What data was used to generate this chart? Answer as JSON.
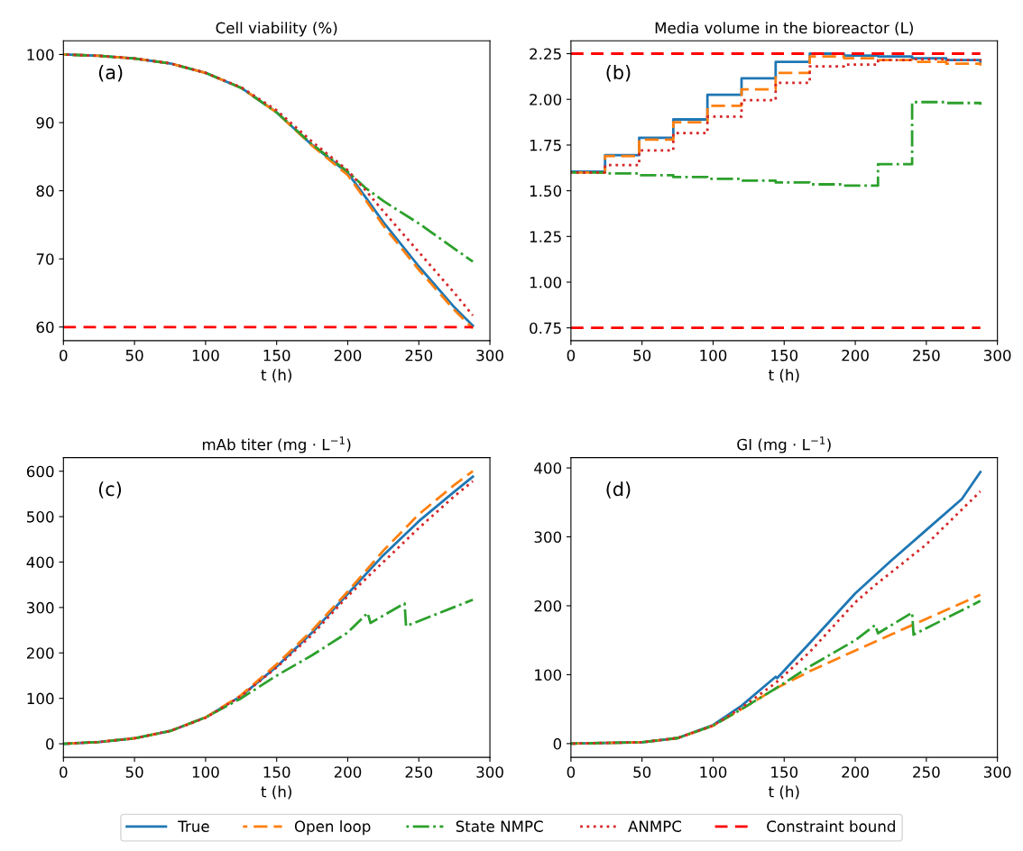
{
  "chart_data": [
    {
      "type": "line",
      "title": "Cell viability (%)",
      "xlabel": "t (h)",
      "annotations": [
        {
          "text": "(a)"
        }
      ],
      "xlim": [
        0,
        300
      ],
      "xticks": [
        0,
        50,
        100,
        150,
        200,
        250,
        300
      ],
      "ylim": [
        58,
        102
      ],
      "yticks": [
        60,
        70,
        80,
        90,
        100
      ],
      "legend": "bottom",
      "x": [
        0,
        25,
        50,
        75,
        100,
        125,
        150,
        175,
        200,
        212,
        225,
        250,
        275,
        288
      ],
      "series": [
        {
          "name": "True",
          "color": "#1f77b4",
          "line_style": "solid",
          "values": [
            100,
            99.8,
            99.4,
            98.7,
            97.3,
            95.1,
            91.5,
            86.7,
            82.6,
            79.2,
            75.4,
            68.9,
            62.9,
            60.2
          ]
        },
        {
          "name": "Open loop",
          "color": "#ff7f0e",
          "line_style": "dashed",
          "values": [
            100,
            99.8,
            99.4,
            98.7,
            97.3,
            95.1,
            91.5,
            86.6,
            82.3,
            78.8,
            74.9,
            68.4,
            62.5,
            59.8
          ]
        },
        {
          "name": "State NMPC",
          "color": "#2ca02c",
          "line_style": "dashdot",
          "values": [
            100,
            99.8,
            99.4,
            98.7,
            97.3,
            95.1,
            91.5,
            86.8,
            82.8,
            80.5,
            78.5,
            75.2,
            71.5,
            69.6
          ]
        },
        {
          "name": "ANMPC",
          "color": "#d62728",
          "line_style": "dotted",
          "values": [
            100,
            99.8,
            99.4,
            98.7,
            97.3,
            95.2,
            91.8,
            87.2,
            83.0,
            80.2,
            77.0,
            71.0,
            65.0,
            61.7
          ]
        }
      ],
      "ref_lines": [
        {
          "axis": "y",
          "value": 60,
          "label": "Constraint bound",
          "color": "#ff0000",
          "line_style": "dashed"
        }
      ]
    },
    {
      "type": "step",
      "title": "Media volume in the bioreactor (L)",
      "xlabel": "t (h)",
      "annotations": [
        {
          "text": "(b)"
        }
      ],
      "xlim": [
        0,
        300
      ],
      "xticks": [
        0,
        50,
        100,
        150,
        200,
        250,
        300
      ],
      "ylim": [
        0.68,
        2.32
      ],
      "yticks": [
        0.75,
        {
          "value": 1,
          "label": "1.00"
        },
        1.25,
        {
          "value": 1.5,
          "label": "1.50"
        },
        1.75,
        {
          "value": 2,
          "label": "2.00"
        },
        2.25
      ],
      "x": [
        0,
        24,
        48,
        72,
        96,
        120,
        144,
        168,
        192,
        216,
        240,
        264,
        288
      ],
      "series": [
        {
          "color": "#1f77b4",
          "line_style": "solid",
          "values": [
            1.605,
            1.695,
            1.79,
            1.89,
            2.025,
            2.115,
            2.205,
            2.25,
            2.24,
            2.235,
            2.225,
            2.215,
            2.205
          ]
        },
        {
          "color": "#ff7f0e",
          "line_style": "dashed",
          "values": [
            1.6,
            1.69,
            1.78,
            1.875,
            1.965,
            2.055,
            2.145,
            2.235,
            2.225,
            2.215,
            2.205,
            2.195,
            2.185
          ]
        },
        {
          "color": "#2ca02c",
          "line_style": "dashdot",
          "values": [
            1.6,
            1.595,
            1.585,
            1.575,
            1.565,
            1.555,
            1.545,
            1.535,
            1.528,
            1.645,
            1.985,
            1.98,
            1.97
          ]
        },
        {
          "color": "#d62728",
          "line_style": "dotted",
          "values": [
            1.6,
            1.64,
            1.72,
            1.815,
            1.905,
            1.995,
            2.09,
            2.18,
            2.19,
            2.215,
            2.22,
            2.215,
            2.21
          ]
        }
      ],
      "ref_lines": [
        {
          "axis": "y",
          "value": 2.25,
          "color": "#ff0000",
          "line_style": "dashed"
        },
        {
          "axis": "y",
          "value": 0.75,
          "color": "#ff0000",
          "line_style": "dashed"
        }
      ]
    },
    {
      "type": "line",
      "title": "mAb titer (mg · L$^{−1}$)",
      "xlabel": "t (h)",
      "annotations": [
        {
          "text": "(c)"
        }
      ],
      "xlim": [
        0,
        300
      ],
      "xticks": [
        0,
        50,
        100,
        150,
        200,
        250,
        300
      ],
      "ylim": [
        -30,
        630
      ],
      "yticks": [
        0,
        100,
        200,
        300,
        400,
        500,
        600
      ],
      "series": [
        {
          "color": "#1f77b4",
          "line_style": "solid",
          "x": [
            0,
            25,
            50,
            75,
            100,
            125,
            150,
            175,
            200,
            225,
            250,
            275,
            288
          ],
          "values": [
            0,
            4,
            12,
            28,
            58,
            105,
            170,
            245,
            330,
            415,
            490,
            555,
            588
          ]
        },
        {
          "color": "#ff7f0e",
          "line_style": "dashed",
          "x": [
            0,
            25,
            50,
            75,
            100,
            125,
            150,
            175,
            200,
            225,
            250,
            275,
            288
          ],
          "values": [
            0,
            4,
            12,
            28,
            58,
            107,
            175,
            250,
            335,
            425,
            505,
            570,
            600
          ]
        },
        {
          "color": "#2ca02c",
          "line_style": "dashdot",
          "x": [
            0,
            25,
            50,
            75,
            100,
            125,
            150,
            175,
            200,
            214,
            216,
            240,
            241,
            288
          ],
          "values": [
            0,
            4,
            12,
            28,
            58,
            100,
            150,
            195,
            245,
            288,
            266,
            309,
            259,
            317
          ]
        },
        {
          "color": "#d62728",
          "line_style": "dotted",
          "x": [
            0,
            25,
            50,
            75,
            100,
            125,
            150,
            175,
            200,
            225,
            250,
            275,
            288
          ],
          "values": [
            0,
            4,
            12,
            28,
            57,
            105,
            168,
            240,
            325,
            400,
            475,
            545,
            578
          ]
        }
      ]
    },
    {
      "type": "line",
      "title": "GI (mg · L$^{−1}$)",
      "xlabel": "t (h)",
      "annotations": [
        {
          "text": "(d)"
        }
      ],
      "xlim": [
        0,
        300
      ],
      "xticks": [
        0,
        50,
        100,
        150,
        200,
        250,
        300
      ],
      "ylim": [
        -20,
        415
      ],
      "yticks": [
        0,
        100,
        200,
        300,
        400
      ],
      "series": [
        {
          "color": "#1f77b4",
          "line_style": "solid",
          "x": [
            0,
            50,
            75,
            100,
            120,
            144,
            145,
            168,
            200,
            225,
            250,
            275,
            288
          ],
          "values": [
            0,
            2,
            8,
            27,
            55,
            97,
            95,
            146,
            218,
            265,
            310,
            355,
            394
          ]
        },
        {
          "color": "#ff7f0e",
          "line_style": "dashed",
          "x": [
            0,
            50,
            75,
            100,
            120,
            144,
            168,
            200,
            225,
            250,
            288
          ],
          "values": [
            0,
            2,
            8,
            26,
            50,
            80,
            105,
            135,
            158,
            181,
            216
          ]
        },
        {
          "color": "#2ca02c",
          "line_style": "dashdot",
          "x": [
            0,
            50,
            75,
            100,
            120,
            144,
            168,
            200,
            214,
            216,
            240,
            241,
            288
          ],
          "values": [
            0,
            2,
            8,
            26,
            50,
            80,
            112,
            150,
            172,
            160,
            190,
            158,
            207
          ]
        },
        {
          "color": "#d62728",
          "line_style": "dotted",
          "x": [
            0,
            50,
            75,
            100,
            120,
            144,
            168,
            200,
            214,
            250,
            288
          ],
          "values": [
            0,
            2,
            8,
            26,
            52,
            88,
            133,
            205,
            230,
            289,
            366
          ]
        }
      ]
    }
  ]
}
